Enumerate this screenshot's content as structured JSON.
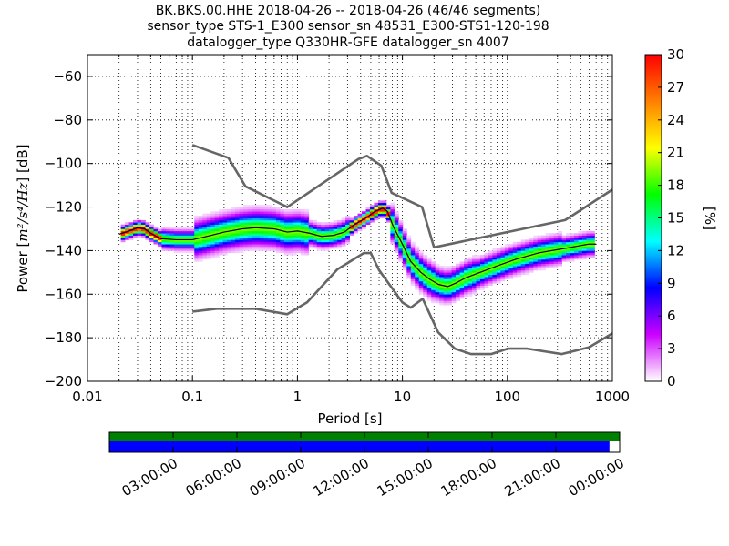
{
  "title": {
    "line1": "BK.BKS.00.HHE   2018-04-26 -- 2018-04-26  (46/46 segments)",
    "line2": "sensor_type STS-1_E300 sensor_sn 48531_E300-STS1-120-198",
    "line3": "datalogger_type Q330HR-GFE datalogger_sn 4007"
  },
  "chart_data": {
    "type": "heatmap",
    "xlabel": "Period [s]",
    "ylabel": "Power [m²/s⁴/Hz] [dB]",
    "ylabel_parts": {
      "prefix": "Power [",
      "unit": "m²/s⁴/Hz",
      "suffix": "] [dB]"
    },
    "x_scale": "log",
    "xlim": [
      0.01,
      1000
    ],
    "ylim": [
      -200,
      -50
    ],
    "xticks": [
      0.01,
      0.1,
      1,
      10,
      100,
      1000
    ],
    "xtick_labels": [
      "0.01",
      "0.1",
      "1",
      "10",
      "100",
      "1000"
    ],
    "yticks": [
      -200,
      -180,
      -160,
      -140,
      -120,
      -100,
      -80,
      -60
    ],
    "ytick_labels": [
      "−200",
      "−180",
      "−160",
      "−140",
      "−120",
      "−100",
      "−80",
      "−60"
    ],
    "grid": true,
    "colorbar": {
      "label": "[%]",
      "range": [
        0,
        30
      ],
      "ticks": [
        "0",
        "3",
        "6",
        "9",
        "12",
        "15",
        "18",
        "21",
        "24",
        "27",
        "30"
      ],
      "stops": [
        "#ffffff",
        "#cc00ff",
        "#0000ff",
        "#00ffff",
        "#00ff00",
        "#ffff00",
        "#ff8000",
        "#ff0000"
      ]
    },
    "series": [
      {
        "kind": "mode",
        "color": "#000000",
        "points": [
          [
            0.02,
            -132.5
          ],
          [
            0.025,
            -131
          ],
          [
            0.03,
            -129.5
          ],
          [
            0.035,
            -130
          ],
          [
            0.04,
            -132
          ],
          [
            0.05,
            -134.5
          ],
          [
            0.07,
            -135
          ],
          [
            0.1,
            -135
          ],
          [
            0.15,
            -133
          ],
          [
            0.2,
            -131.5
          ],
          [
            0.3,
            -130
          ],
          [
            0.4,
            -129.5
          ],
          [
            0.6,
            -130
          ],
          [
            0.8,
            -131.5
          ],
          [
            1,
            -131
          ],
          [
            1.3,
            -132
          ],
          [
            1.7,
            -133.5
          ],
          [
            2.2,
            -133
          ],
          [
            2.8,
            -131.5
          ],
          [
            3.5,
            -128
          ],
          [
            4.5,
            -125
          ],
          [
            5.5,
            -122
          ],
          [
            6.5,
            -120.5
          ],
          [
            7.2,
            -122
          ],
          [
            8.2,
            -129
          ],
          [
            10,
            -137
          ],
          [
            12,
            -145
          ],
          [
            15,
            -150
          ],
          [
            18,
            -153
          ],
          [
            22,
            -155.5
          ],
          [
            27,
            -156.5
          ],
          [
            32,
            -155
          ],
          [
            40,
            -152.5
          ],
          [
            55,
            -150
          ],
          [
            80,
            -147
          ],
          [
            120,
            -144
          ],
          [
            200,
            -141
          ],
          [
            350,
            -139
          ],
          [
            600,
            -137
          ],
          [
            700,
            -137
          ]
        ]
      },
      {
        "kind": "noise-model-high",
        "color": "#666666",
        "points": [
          [
            0.1,
            -91.5
          ],
          [
            0.22,
            -97.4
          ],
          [
            0.32,
            -110.5
          ],
          [
            0.8,
            -120
          ],
          [
            3.8,
            -98
          ],
          [
            4.6,
            -96.5
          ],
          [
            6.3,
            -101
          ],
          [
            7.9,
            -113.5
          ],
          [
            15.4,
            -120
          ],
          [
            20,
            -138.5
          ],
          [
            354.8,
            -126
          ],
          [
            1000,
            -112
          ]
        ]
      },
      {
        "kind": "noise-model-low",
        "color": "#666666",
        "points": [
          [
            0.1,
            -168
          ],
          [
            0.17,
            -166.7
          ],
          [
            0.4,
            -166.7
          ],
          [
            0.8,
            -169.2
          ],
          [
            1.24,
            -163.7
          ],
          [
            2.4,
            -148.6
          ],
          [
            4.3,
            -141.1
          ],
          [
            5,
            -141.1
          ],
          [
            6,
            -149
          ],
          [
            10,
            -163.8
          ],
          [
            12,
            -166.2
          ],
          [
            15.6,
            -162.1
          ],
          [
            21.9,
            -177.5
          ],
          [
            31.6,
            -185
          ],
          [
            45,
            -187.5
          ],
          [
            70,
            -187.5
          ],
          [
            101,
            -185
          ],
          [
            154,
            -185
          ],
          [
            328,
            -187.5
          ],
          [
            600,
            -184.4
          ],
          [
            1000,
            -178
          ]
        ]
      }
    ]
  },
  "time_axis": {
    "tick_labels": [
      "03:00:00",
      "06:00:00",
      "09:00:00",
      "12:00:00",
      "15:00:00",
      "18:00:00",
      "21:00:00",
      "00:00:00"
    ],
    "coverage_bars": [
      {
        "name": "all-data",
        "color": "#008000",
        "fraction": 1.0
      },
      {
        "name": "used-data",
        "color": "#0000ff",
        "fraction": 0.98
      }
    ]
  }
}
